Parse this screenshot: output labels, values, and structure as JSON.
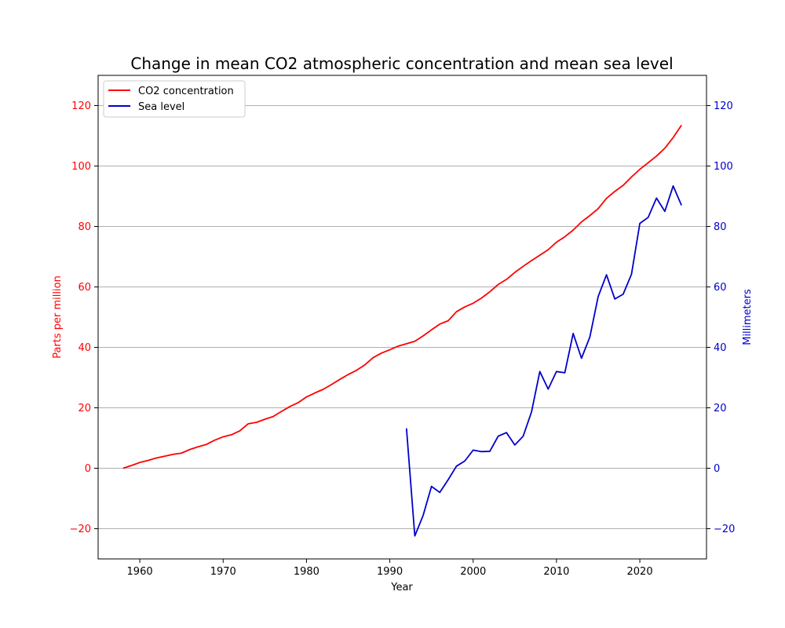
{
  "chart_data": {
    "type": "line",
    "title": "Change in mean CO2 atmospheric concentration and mean sea level",
    "xlabel": "Year",
    "ylabel_left": "Parts per million",
    "ylabel_right": "Millimeters",
    "xlim": [
      1955,
      2028
    ],
    "ylim": [
      -30,
      130
    ],
    "xticks": [
      1960,
      1970,
      1980,
      1990,
      2000,
      2010,
      2020
    ],
    "yticks": [
      -20,
      0,
      20,
      40,
      60,
      80,
      100,
      120
    ],
    "grid": "horizontal",
    "legend_position": "top-left",
    "colors": {
      "co2": "#ff0000",
      "sea": "#0000cc"
    },
    "series": [
      {
        "name": "CO2 concentration",
        "axis": "left",
        "color": "#ff0000",
        "x": [
          1958,
          1959,
          1960,
          1961,
          1962,
          1963,
          1964,
          1965,
          1966,
          1967,
          1968,
          1969,
          1970,
          1971,
          1972,
          1973,
          1974,
          1975,
          1976,
          1977,
          1978,
          1979,
          1980,
          1981,
          1982,
          1983,
          1984,
          1985,
          1986,
          1987,
          1988,
          1989,
          1990,
          1991,
          1992,
          1993,
          1994,
          1995,
          1996,
          1997,
          1998,
          1999,
          2000,
          2001,
          2002,
          2003,
          2004,
          2005,
          2006,
          2007,
          2008,
          2009,
          2010,
          2011,
          2012,
          2013,
          2014,
          2015,
          2016,
          2017,
          2018,
          2019,
          2020,
          2021,
          2022,
          2023,
          2024,
          2025
        ],
        "values": [
          0,
          0.9,
          1.9,
          2.6,
          3.4,
          4.0,
          4.6,
          5.0,
          6.2,
          7.1,
          7.9,
          9.3,
          10.4,
          11.1,
          12.4,
          14.7,
          15.2,
          16.2,
          17.1,
          18.8,
          20.4,
          21.7,
          23.6,
          24.9,
          26.1,
          27.7,
          29.4,
          31.0,
          32.4,
          34.2,
          36.6,
          38.1,
          39.2,
          40.4,
          41.2,
          42.0,
          43.8,
          45.8,
          47.7,
          48.8,
          51.8,
          53.4,
          54.6,
          56.3,
          58.4,
          60.8,
          62.5,
          64.8,
          66.8,
          68.7,
          70.5,
          72.3,
          74.8,
          76.6,
          78.8,
          81.5,
          83.6,
          85.9,
          89.3,
          91.6,
          93.6,
          96.4,
          98.9,
          101.1,
          103.3,
          105.9,
          109.4,
          113.5
        ]
      },
      {
        "name": "Sea level",
        "axis": "right",
        "color": "#0000cc",
        "x": [
          1992,
          1993,
          1994,
          1995,
          1996,
          1997,
          1998,
          1999,
          2000,
          2001,
          2002,
          2003,
          2004,
          2005,
          2006,
          2007,
          2008,
          2009,
          2010,
          2011,
          2012,
          2013,
          2014,
          2015,
          2016,
          2017,
          2018,
          2019,
          2020,
          2021,
          2022,
          2023,
          2024,
          2025
        ],
        "values": [
          13.2,
          -22.4,
          -15.6,
          -6.0,
          -8.0,
          -3.8,
          0.7,
          2.4,
          6.0,
          5.5,
          5.6,
          10.6,
          11.8,
          7.7,
          10.6,
          18.6,
          32.0,
          26.2,
          32.0,
          31.6,
          44.6,
          36.4,
          43.4,
          56.8,
          64.0,
          56.0,
          57.6,
          64.2,
          81.0,
          83.0,
          89.4,
          85.0,
          93.4,
          87.0
        ]
      }
    ]
  }
}
